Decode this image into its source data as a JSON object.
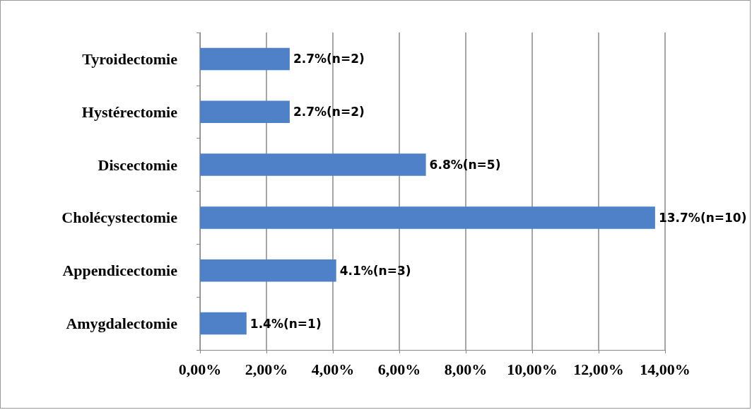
{
  "chart_data": {
    "type": "bar",
    "orientation": "horizontal",
    "categories": [
      "Tyroidectomie",
      "Hystérectomie",
      "Discectomie",
      "Cholécystectomie",
      "Appendicectomie",
      "Amygdalectomie"
    ],
    "values": [
      2.7,
      2.7,
      6.8,
      13.7,
      4.1,
      1.4
    ],
    "value_labels": [
      "2.7%(n=2)",
      "2.7%(n=2)",
      "6.8%(n=5)",
      "13.7%(n=10)",
      "4.1%(n=3)",
      "1.4%(n=1)"
    ],
    "color": "#4f81c8",
    "xlim": [
      0,
      14
    ],
    "xticks": [
      {
        "value": 0,
        "label": "0,00%"
      },
      {
        "value": 2,
        "label": "2,00%"
      },
      {
        "value": 4,
        "label": "4,00%"
      },
      {
        "value": 6,
        "label": "6,00%"
      },
      {
        "value": 8,
        "label": "8,00%"
      },
      {
        "value": 10,
        "label": "10,00%"
      },
      {
        "value": 12,
        "label": "12,00%"
      },
      {
        "value": 14,
        "label": "14,00%"
      }
    ],
    "grid": "x"
  }
}
